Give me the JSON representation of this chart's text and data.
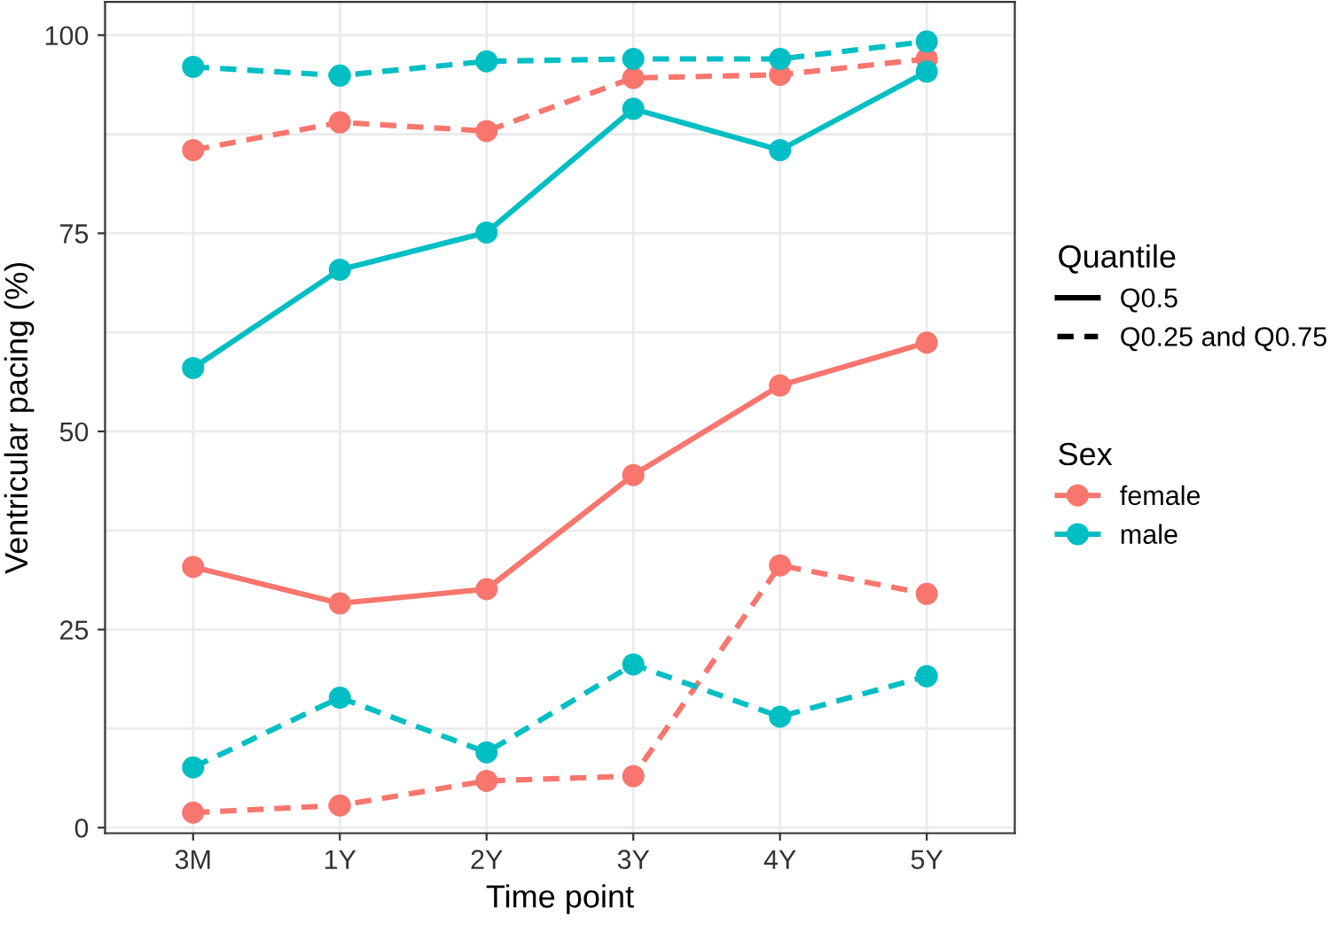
{
  "chart_data": {
    "type": "line",
    "xlabel": "Time point",
    "ylabel": "Ventricular pacing (%)",
    "categories": [
      "3M",
      "1Y",
      "2Y",
      "3Y",
      "4Y",
      "5Y"
    ],
    "ylim": [
      -0.7,
      104.2
    ],
    "yticks": [
      0,
      {
        "value": 12.5,
        "label": null
      },
      25,
      {
        "value": 37.5,
        "label": null
      },
      50,
      {
        "value": 62.5,
        "label": null
      },
      75,
      {
        "value": 87.5,
        "label": null
      },
      100
    ],
    "grid": true,
    "marker": "circle",
    "legend": "right",
    "legend_title": [
      "Quantile",
      "Sex"
    ],
    "annotations": [
      "Q0.5",
      "Q0.25 and Q0.75"
    ],
    "series": [
      {
        "name": "female",
        "color": "#f8766d",
        "line_style": "solid",
        "values": [
          32.9,
          28.3,
          30.1,
          44.5,
          55.8,
          61.2
        ]
      },
      {
        "color": "#f8766d",
        "line_style": "dashed",
        "values": [
          1.9,
          2.8,
          5.9,
          6.5,
          33.1,
          29.5
        ]
      },
      {
        "color": "#f8766d",
        "line_style": "dashed",
        "values": [
          85.5,
          89.0,
          87.9,
          94.6,
          95.0,
          97.0
        ]
      },
      {
        "name": "male",
        "color": "#00bfc4",
        "line_style": "solid",
        "values": [
          58.0,
          70.4,
          75.1,
          90.7,
          85.5,
          95.4
        ]
      },
      {
        "color": "#00bfc4",
        "line_style": "dashed",
        "values": [
          7.6,
          16.4,
          9.5,
          20.6,
          14.0,
          19.1
        ]
      },
      {
        "color": "#00bfc4",
        "line_style": "dashed",
        "values": [
          96.0,
          94.9,
          96.7,
          97.0,
          97.0,
          99.2
        ]
      }
    ]
  }
}
